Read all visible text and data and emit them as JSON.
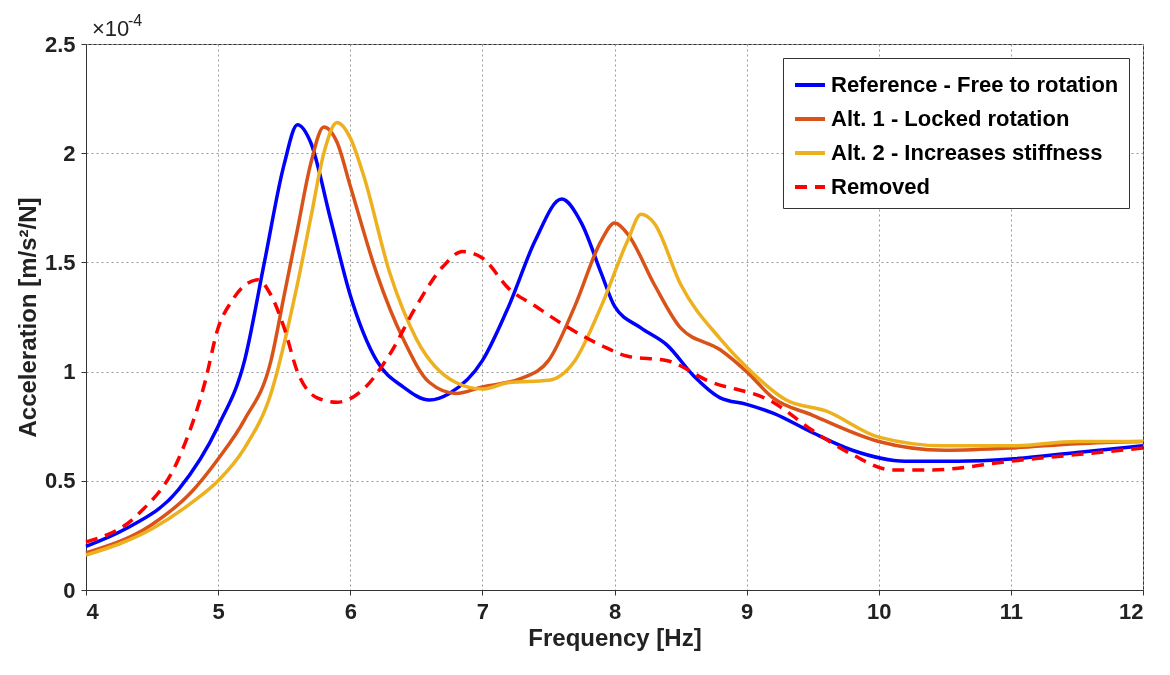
{
  "chart_data": {
    "type": "line",
    "xlabel": "Frequency [Hz]",
    "ylabel": "Acceleration [m/s²/N]",
    "xlim": [
      4,
      12
    ],
    "xticks": [
      4,
      5,
      6,
      7,
      8,
      9,
      10,
      11,
      12
    ],
    "ylim": [
      0,
      2.5
    ],
    "yticks": [
      0,
      0.5,
      1,
      1.5,
      2,
      2.5
    ],
    "grid": true,
    "legend": "top right",
    "marker": "none",
    "line_style": "solid",
    "annotations": [
      "×10$^{-4}$"
    ],
    "series": [
      {
        "name": "Reference - Free to rotation",
        "color": "#0000ff",
        "x": [
          4,
          4.3,
          4.7,
          5.0,
          5.2,
          5.35,
          5.5,
          5.6,
          5.7,
          5.85,
          6.0,
          6.2,
          6.4,
          6.6,
          6.75,
          7.0,
          7.2,
          7.4,
          7.6,
          7.75,
          7.9,
          8.0,
          8.2,
          8.4,
          8.6,
          8.8,
          9.0,
          9.2,
          9.5,
          9.8,
          10.2,
          10.6,
          11.0,
          11.5,
          12
        ],
        "values": [
          0.2,
          0.28,
          0.46,
          0.75,
          1.05,
          1.5,
          1.95,
          2.13,
          2.05,
          1.7,
          1.35,
          1.05,
          0.93,
          0.87,
          0.9,
          1.05,
          1.3,
          1.6,
          1.79,
          1.68,
          1.45,
          1.3,
          1.2,
          1.12,
          0.98,
          0.88,
          0.85,
          0.81,
          0.72,
          0.64,
          0.59,
          0.59,
          0.6,
          0.63,
          0.66
        ]
      },
      {
        "name": "Alt. 1 - Locked rotation",
        "color": "#d95319",
        "x": [
          4,
          4.5,
          4.8,
          5.0,
          5.2,
          5.4,
          5.5,
          5.6,
          5.7,
          5.8,
          5.9,
          6.0,
          6.2,
          6.4,
          6.6,
          6.8,
          7.0,
          7.3,
          7.5,
          7.7,
          7.9,
          8.0,
          8.1,
          8.3,
          8.5,
          8.8,
          9.0,
          9.2,
          9.5,
          10.0,
          10.5,
          11,
          11.5,
          12
        ],
        "values": [
          0.17,
          0.3,
          0.45,
          0.6,
          0.78,
          1.05,
          1.35,
          1.65,
          1.95,
          2.12,
          2.05,
          1.85,
          1.45,
          1.15,
          0.95,
          0.9,
          0.93,
          0.97,
          1.05,
          1.3,
          1.6,
          1.68,
          1.63,
          1.4,
          1.2,
          1.1,
          1.0,
          0.88,
          0.8,
          0.68,
          0.64,
          0.65,
          0.67,
          0.68
        ]
      },
      {
        "name": "Alt. 2 - Increases stiffness",
        "color": "#edb120",
        "x": [
          4,
          4.5,
          4.8,
          5.0,
          5.2,
          5.4,
          5.6,
          5.7,
          5.8,
          5.9,
          6.0,
          6.1,
          6.3,
          6.5,
          6.8,
          7.0,
          7.2,
          7.5,
          7.7,
          7.9,
          8.1,
          8.2,
          8.3,
          8.5,
          8.8,
          9.0,
          9.3,
          9.6,
          10.0,
          10.5,
          11,
          11.5,
          12
        ],
        "values": [
          0.16,
          0.28,
          0.4,
          0.5,
          0.65,
          0.9,
          1.4,
          1.7,
          2.0,
          2.14,
          2.07,
          1.9,
          1.45,
          1.15,
          0.95,
          0.92,
          0.95,
          0.96,
          1.05,
          1.3,
          1.6,
          1.72,
          1.68,
          1.4,
          1.15,
          1.02,
          0.87,
          0.82,
          0.7,
          0.66,
          0.66,
          0.68,
          0.68
        ]
      },
      {
        "name": "Removed",
        "color": "#ff0000",
        "line_style": "dashed",
        "x": [
          4,
          4.4,
          4.7,
          4.9,
          5.0,
          5.1,
          5.3,
          5.4,
          5.5,
          5.6,
          5.75,
          5.9,
          6.1,
          6.3,
          6.5,
          6.7,
          6.85,
          7.0,
          7.2,
          7.4,
          7.6,
          7.9,
          8.1,
          8.4,
          8.7,
          9.2,
          9.5,
          9.8,
          10.1,
          10.4,
          11,
          11.5,
          12
        ],
        "values": [
          0.22,
          0.35,
          0.6,
          0.95,
          1.2,
          1.32,
          1.42,
          1.35,
          1.2,
          1.0,
          0.88,
          0.86,
          0.92,
          1.08,
          1.3,
          1.48,
          1.55,
          1.52,
          1.38,
          1.3,
          1.22,
          1.12,
          1.07,
          1.05,
          0.96,
          0.86,
          0.73,
          0.62,
          0.55,
          0.55,
          0.59,
          0.62,
          0.65
        ]
      }
    ]
  }
}
